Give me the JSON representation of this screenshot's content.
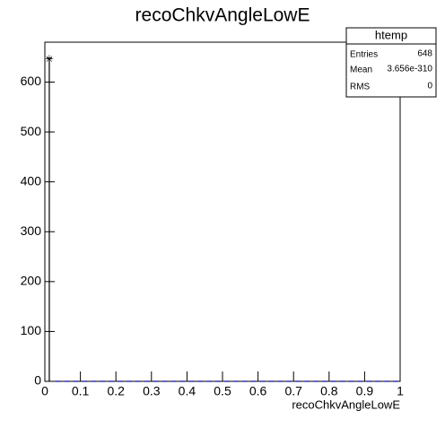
{
  "chart_data": {
    "type": "histogram",
    "title": "recoChkvAngleLowE",
    "x_label": "recoChkvAngleLowE",
    "bins": [
      0,
      0.025,
      0.05,
      0.075,
      0.1,
      0.125,
      0.15,
      0.175,
      0.2,
      0.225,
      0.25,
      0.275,
      0.3,
      0.325,
      0.35,
      0.375,
      0.4,
      0.425,
      0.45,
      0.475,
      0.5,
      0.525,
      0.55,
      0.575,
      0.6,
      0.625,
      0.65,
      0.675,
      0.7,
      0.725,
      0.75,
      0.775,
      0.8,
      0.825,
      0.85,
      0.875,
      0.9,
      0.925,
      0.95,
      0.975,
      1
    ],
    "counts": [
      648,
      0,
      0,
      0,
      0,
      0,
      0,
      0,
      0,
      0,
      0,
      0,
      0,
      0,
      0,
      0,
      0,
      0,
      0,
      0,
      0,
      0,
      0,
      0,
      0,
      0,
      0,
      0,
      0,
      0,
      0,
      0,
      0,
      0,
      0,
      0,
      0,
      0,
      0,
      0
    ],
    "color": "#000099",
    "xlim": [
      0,
      1
    ],
    "ylim": [
      0,
      680
    ],
    "xticks": [
      0,
      0.1,
      0.2,
      0.3,
      0.4,
      0.5,
      0.6,
      0.7,
      0.8,
      0.9,
      1
    ],
    "yticks": [
      0,
      100,
      200,
      300,
      400,
      500,
      600
    ],
    "stats": {
      "title": "htemp",
      "rows": [
        [
          "Entries",
          "648"
        ],
        [
          "Mean",
          "3.656e-310"
        ],
        [
          "RMS",
          "0"
        ]
      ]
    }
  }
}
